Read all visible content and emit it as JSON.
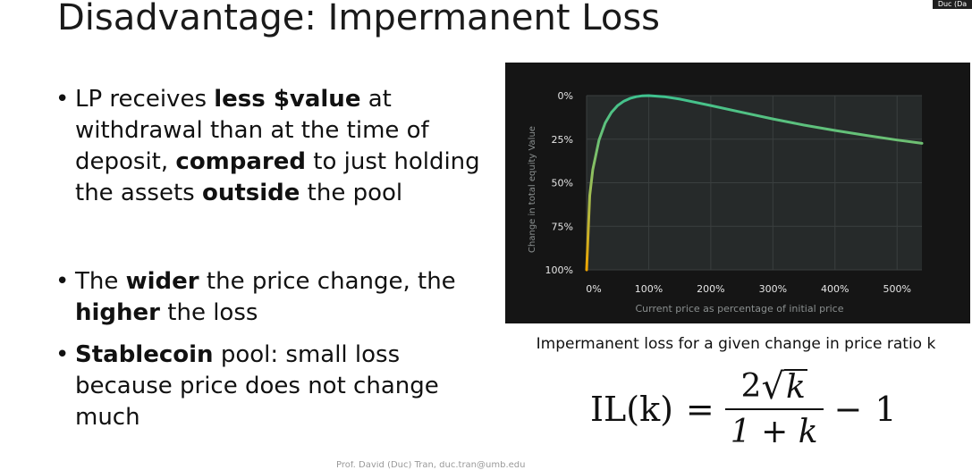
{
  "slide": {
    "title": "Disadvantage: Impermanent Loss",
    "camera_badge": "Duc (Da",
    "footer": "Prof. David (Duc) Tran, duc.tran@umb.edu"
  },
  "bullets": [
    {
      "t1": "LP receives ",
      "b1": "less $value",
      "t2": " at withdrawal than at the time of deposit, ",
      "b2": "compared",
      "t3": " to just holding the assets ",
      "b3": "outside",
      "t4": " the pool"
    },
    {
      "t1": "The ",
      "b1": "wider",
      "t2": " the price change, the ",
      "b2": "higher",
      "t3": " the loss"
    },
    {
      "b1": "Stablecoin",
      "t1": " pool:  small loss because price does not change much"
    }
  ],
  "caption": "Impermanent loss for a given change in price ratio k",
  "formula": {
    "lhs": "IL(k)",
    "eq": "=",
    "num_coef": "2",
    "radical": "√",
    "radicand": "k",
    "den": "1 + k",
    "minus": "−",
    "one": "1"
  },
  "colors": {
    "chart_bg": "#151515",
    "plot_bg": "#262a2a",
    "curve": "#3fc28f",
    "accent_orange": "#f0a500",
    "grid": "#3a3f3f",
    "tick_text": "#e6e6e6",
    "axis_title_text": "#8a8f8f"
  },
  "chart_data": {
    "type": "line",
    "xlabel": "Current price as percentage of initial price",
    "ylabel": "Change in total equity Value",
    "x_ticks": [
      "0%",
      "100%",
      "200%",
      "300%",
      "400%",
      "500%"
    ],
    "y_ticks": [
      "0%",
      "25%",
      "50%",
      "75%",
      "100%"
    ],
    "xlim": [
      0,
      540
    ],
    "ylim": [
      0,
      100
    ],
    "y_inverted": true,
    "grid": true,
    "series": [
      {
        "x": [
          0,
          5,
          10,
          20,
          30,
          40,
          50,
          60,
          70,
          80,
          90,
          100,
          125,
          150,
          200,
          250,
          300,
          350,
          400,
          450,
          500,
          540
        ],
        "y": [
          100,
          57.4,
          42.5,
          25.5,
          15.7,
          9.6,
          5.7,
          3.2,
          1.6,
          0.6,
          0.1,
          0,
          0.6,
          2.0,
          5.7,
          9.6,
          13.4,
          16.9,
          20.0,
          22.8,
          25.5,
          27.4
        ]
      }
    ]
  }
}
